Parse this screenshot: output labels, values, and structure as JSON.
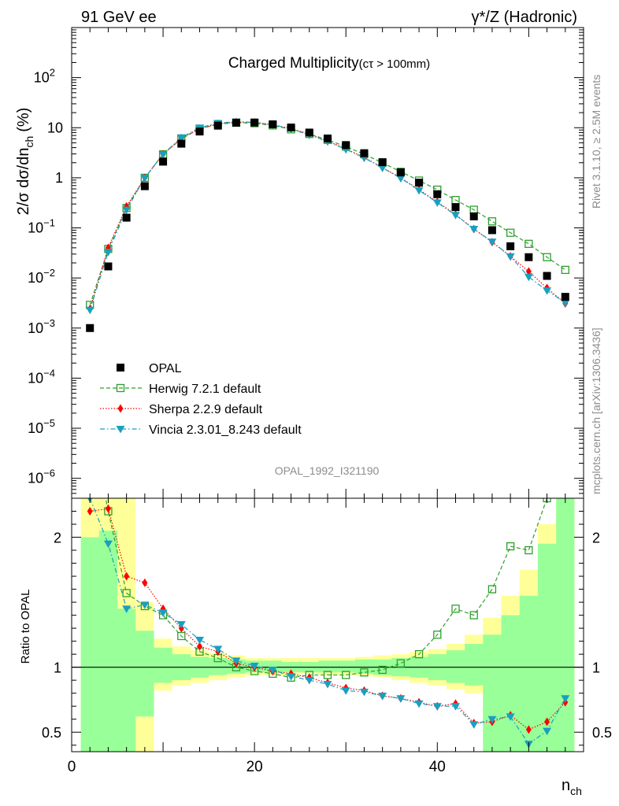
{
  "header": {
    "left": "91 GeV ee",
    "right": "γ*/Z (Hadronic)"
  },
  "side_text": {
    "rivet": "Rivet 3.1.10, ≥ 2.5M events",
    "mcplots": "mcplots.cern.ch [arXiv:1306.3436]"
  },
  "colors": {
    "opal": "#000000",
    "herwig": "#2ca02c",
    "sherpa": "#ff0000",
    "vincia": "#1a9fc0",
    "band_yellow": "#ffff99",
    "band_green": "#99ff99"
  },
  "chart_data": [
    {
      "type": "scatter",
      "title": "Charged Multiplicity",
      "title_sub": "(cτ > 100mm)",
      "ylabel": "2/σ dσ/dn",
      "ylabel_sub": "ch",
      "ylabel_unit": "(%)",
      "yscale": "log",
      "ylim": [
        4e-07,
        1000
      ],
      "xlim": [
        0,
        56
      ],
      "yticks": [
        {
          "v": 1e-06,
          "base": "10",
          "exp": "−6"
        },
        {
          "v": 1e-05,
          "base": "10",
          "exp": "−5"
        },
        {
          "v": 0.0001,
          "base": "10",
          "exp": "−4"
        },
        {
          "v": 0.001,
          "base": "10",
          "exp": "−3"
        },
        {
          "v": 0.01,
          "base": "10",
          "exp": "−2"
        },
        {
          "v": 0.1,
          "base": "10",
          "exp": "−1"
        },
        {
          "v": 1,
          "base": "1",
          "exp": ""
        },
        {
          "v": 10,
          "base": "10",
          "exp": ""
        },
        {
          "v": 100,
          "base": "10",
          "exp": "2"
        }
      ],
      "watermark": "OPAL_1992_I321190",
      "legend_position": "lower-left",
      "x": [
        2,
        4,
        6,
        8,
        10,
        12,
        14,
        16,
        18,
        20,
        22,
        24,
        26,
        28,
        30,
        32,
        34,
        36,
        38,
        40,
        42,
        44,
        46,
        48,
        50,
        52,
        54
      ],
      "series": [
        {
          "name": "OPAL",
          "marker": "square-filled",
          "values": [
            0.001,
            0.017,
            0.16,
            0.68,
            2.1,
            4.8,
            8.4,
            11.0,
            12.6,
            12.7,
            11.7,
            10.1,
            8.0,
            6.1,
            4.5,
            3.1,
            2.05,
            1.28,
            0.8,
            0.47,
            0.26,
            0.17,
            0.09,
            0.043,
            0.026,
            0.011,
            0.0042
          ]
        },
        {
          "name": "Herwig 7.2.1 default",
          "marker": "square-open",
          "line": "dashed",
          "values": [
            0.0029,
            0.038,
            0.25,
            1.0,
            2.95,
            6.0,
            9.5,
            11.8,
            12.6,
            12.3,
            11.1,
            9.3,
            7.5,
            5.7,
            4.2,
            2.95,
            2.0,
            1.32,
            0.88,
            0.58,
            0.36,
            0.23,
            0.135,
            0.08,
            0.048,
            0.026,
            0.0145
          ]
        },
        {
          "name": "Sherpa 2.2.9 default",
          "marker": "diamond-filled",
          "line": "dotted",
          "values": [
            0.0024,
            0.04,
            0.27,
            1.0,
            2.95,
            6.2,
            9.6,
            12.0,
            13.0,
            12.7,
            11.5,
            9.6,
            7.4,
            5.4,
            3.8,
            2.55,
            1.6,
            1.0,
            0.58,
            0.33,
            0.185,
            0.095,
            0.052,
            0.027,
            0.0135,
            0.0063,
            0.0031
          ]
        },
        {
          "name": "Vincia 2.3.01_8.243 default",
          "marker": "triangle-down-filled",
          "line": "dashdot",
          "values": [
            0.0023,
            0.033,
            0.23,
            1.0,
            2.95,
            6.4,
            10.0,
            12.4,
            13.2,
            12.8,
            11.5,
            9.4,
            7.2,
            5.3,
            3.7,
            2.5,
            1.58,
            0.98,
            0.56,
            0.32,
            0.18,
            0.095,
            0.053,
            0.027,
            0.0105,
            0.0056,
            0.0032
          ]
        }
      ]
    },
    {
      "type": "line",
      "ylabel": "Ratio to OPAL",
      "xlabel": "n",
      "xlabel_sub": "ch",
      "xlim": [
        0,
        56
      ],
      "ylim": [
        0.35,
        2.3
      ],
      "xticks": [
        0,
        20,
        40
      ],
      "yticks": [
        0.5,
        1,
        2
      ],
      "reference": 1,
      "x": [
        2,
        4,
        6,
        8,
        10,
        12,
        14,
        16,
        18,
        20,
        22,
        24,
        26,
        28,
        30,
        32,
        34,
        36,
        38,
        40,
        42,
        44,
        46,
        48,
        50,
        52,
        54
      ],
      "band_edges": [
        1,
        3,
        5,
        7,
        9,
        11,
        13,
        15,
        17,
        19,
        21,
        23,
        25,
        27,
        29,
        31,
        33,
        35,
        37,
        39,
        41,
        43,
        45,
        47,
        49,
        51,
        53,
        55
      ],
      "band_yellow": {
        "low": [
          0.35,
          0.35,
          0.35,
          0.35,
          0.82,
          0.86,
          0.88,
          0.9,
          0.92,
          0.94,
          0.94,
          0.94,
          0.95,
          0.94,
          0.94,
          0.93,
          0.92,
          0.9,
          0.88,
          0.86,
          0.83,
          0.8,
          0.35,
          0.35,
          0.35,
          0.35,
          0.35
        ],
        "high": [
          2.3,
          2.3,
          2.3,
          1.5,
          1.22,
          1.16,
          1.13,
          1.11,
          1.09,
          1.07,
          1.07,
          1.07,
          1.07,
          1.07,
          1.07,
          1.08,
          1.09,
          1.1,
          1.12,
          1.14,
          1.18,
          1.25,
          1.38,
          1.55,
          1.75,
          2.1,
          2.3
        ]
      },
      "band_green": {
        "low": [
          0.35,
          0.35,
          0.35,
          0.62,
          0.88,
          0.9,
          0.92,
          0.94,
          0.95,
          0.96,
          0.96,
          0.96,
          0.96,
          0.96,
          0.96,
          0.95,
          0.94,
          0.93,
          0.92,
          0.9,
          0.88,
          0.86,
          0.35,
          0.35,
          0.35,
          0.35,
          0.35
        ],
        "high": [
          2.0,
          2.05,
          1.45,
          1.28,
          1.15,
          1.1,
          1.08,
          1.07,
          1.06,
          1.05,
          1.05,
          1.04,
          1.04,
          1.05,
          1.05,
          1.06,
          1.06,
          1.07,
          1.08,
          1.1,
          1.13,
          1.18,
          1.25,
          1.4,
          1.55,
          1.95,
          2.3
        ]
      },
      "series": [
        {
          "name": "Herwig 7.2.1 default",
          "values": [
            2.9,
            2.2,
            1.57,
            1.47,
            1.4,
            1.24,
            1.12,
            1.07,
            1.0,
            0.97,
            0.95,
            0.92,
            0.94,
            0.94,
            0.94,
            0.96,
            0.98,
            1.03,
            1.1,
            1.25,
            1.45,
            1.4,
            1.6,
            1.93,
            1.9,
            2.3,
            3.2
          ]
        },
        {
          "name": "Sherpa 2.2.9 default",
          "values": [
            2.2,
            2.22,
            1.7,
            1.65,
            1.45,
            1.3,
            1.16,
            1.12,
            1.03,
            1.0,
            0.97,
            0.95,
            0.92,
            0.88,
            0.84,
            0.82,
            0.78,
            0.76,
            0.73,
            0.7,
            0.72,
            0.57,
            0.58,
            0.63,
            0.52,
            0.58,
            0.73
          ]
        },
        {
          "name": "Vincia 2.3.01_8.243 default",
          "values": [
            2.3,
            1.95,
            1.45,
            1.48,
            1.42,
            1.33,
            1.21,
            1.14,
            1.05,
            1.01,
            0.98,
            0.93,
            0.9,
            0.87,
            0.82,
            0.81,
            0.78,
            0.76,
            0.72,
            0.7,
            0.7,
            0.56,
            0.6,
            0.62,
            0.41,
            0.51,
            0.76
          ]
        }
      ]
    }
  ]
}
